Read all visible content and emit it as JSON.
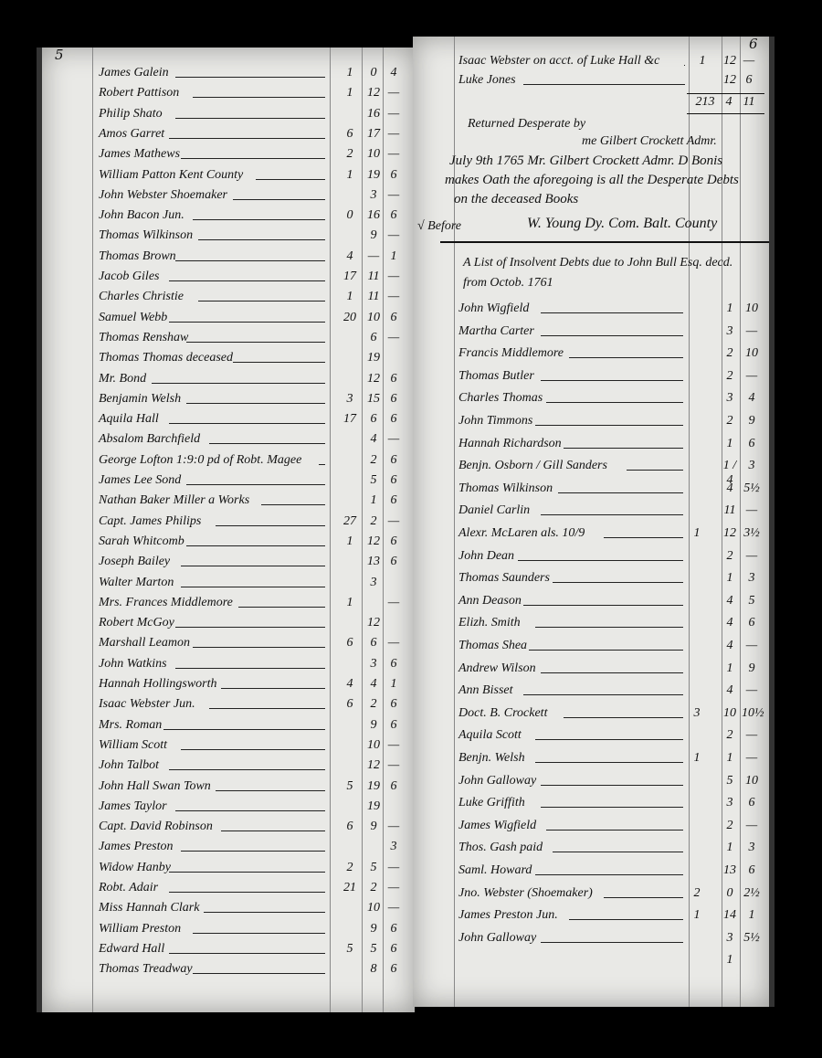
{
  "left_page": {
    "page_number": "5",
    "entries": [
      {
        "name": "James Galein",
        "l": "1",
        "s": "0",
        "d": "4"
      },
      {
        "name": "Robert Pattison",
        "l": "1",
        "s": "12",
        "d": "—"
      },
      {
        "name": "Philip Shato",
        "l": "",
        "s": "16",
        "d": "—"
      },
      {
        "name": "Amos Garret",
        "l": "6",
        "s": "17",
        "d": "—"
      },
      {
        "name": "James Mathews",
        "l": "2",
        "s": "10",
        "d": "—"
      },
      {
        "name": "William Patton Kent County",
        "l": "1",
        "s": "19",
        "d": "6"
      },
      {
        "name": "John Webster Shoemaker",
        "l": "",
        "s": "3",
        "d": "—"
      },
      {
        "name": "John Bacon Jun.",
        "l": "0",
        "s": "16",
        "d": "6"
      },
      {
        "name": "Thomas Wilkinson",
        "l": "",
        "s": "9",
        "d": "—"
      },
      {
        "name": "Thomas Brown",
        "l": "4",
        "s": "—",
        "d": "1"
      },
      {
        "name": "Jacob Giles",
        "l": "17",
        "s": "11",
        "d": "—"
      },
      {
        "name": "Charles Christie",
        "l": "1",
        "s": "11",
        "d": "—"
      },
      {
        "name": "Samuel Webb",
        "l": "20",
        "s": "10",
        "d": "6"
      },
      {
        "name": "Thomas Renshaw",
        "l": "",
        "s": "6",
        "d": "—"
      },
      {
        "name": "Thomas Thomas deceased",
        "l": "",
        "s": "19",
        "d": ""
      },
      {
        "name": "Mr. Bond",
        "l": "",
        "s": "12",
        "d": "6"
      },
      {
        "name": "Benjamin Welsh",
        "l": "3",
        "s": "15",
        "d": "6"
      },
      {
        "name": "Aquila Hall",
        "l": "17",
        "s": "6",
        "d": "6"
      },
      {
        "name": "Absalom Barchfield",
        "l": "",
        "s": "4",
        "d": "—"
      },
      {
        "name": "George Lofton 1:9:0 pd of Robt. Magee",
        "l": "",
        "s": "2",
        "d": "6"
      },
      {
        "name": "James Lee Sond",
        "l": "",
        "s": "5",
        "d": "6"
      },
      {
        "name": "Nathan Baker Miller a Works",
        "l": "",
        "s": "1",
        "d": "6"
      },
      {
        "name": "Capt. James Philips",
        "l": "27",
        "s": "2",
        "d": "—"
      },
      {
        "name": "Sarah Whitcomb",
        "l": "1",
        "s": "12",
        "d": "6"
      },
      {
        "name": "Joseph Bailey",
        "l": "",
        "s": "13",
        "d": "6"
      },
      {
        "name": "Walter Marton",
        "l": "",
        "s": "3",
        "d": ""
      },
      {
        "name": "Mrs. Frances Middlemore",
        "l": "1",
        "s": "",
        "d": "—"
      },
      {
        "name": "Robert McGoy",
        "l": "",
        "s": "12",
        "d": ""
      },
      {
        "name": "Marshall Leamon",
        "l": "6",
        "s": "6",
        "d": "—"
      },
      {
        "name": "John Watkins",
        "l": "",
        "s": "3",
        "d": "6"
      },
      {
        "name": "Hannah Hollingsworth",
        "l": "4",
        "s": "4",
        "d": "1"
      },
      {
        "name": "Isaac Webster Jun.",
        "l": "6",
        "s": "2",
        "d": "6"
      },
      {
        "name": "Mrs. Roman",
        "l": "",
        "s": "9",
        "d": "6"
      },
      {
        "name": "William Scott",
        "l": "",
        "s": "10",
        "d": "—"
      },
      {
        "name": "John Talbot",
        "l": "",
        "s": "12",
        "d": "—"
      },
      {
        "name": "John Hall Swan Town",
        "l": "5",
        "s": "19",
        "d": "6"
      },
      {
        "name": "James Taylor",
        "l": "",
        "s": "19",
        "d": ""
      },
      {
        "name": "Capt. David Robinson",
        "l": "6",
        "s": "9",
        "d": "—"
      },
      {
        "name": "James Preston",
        "l": "",
        "s": "",
        "d": "3"
      },
      {
        "name": "Widow Hanby",
        "l": "2",
        "s": "5",
        "d": "—"
      },
      {
        "name": "Robt. Adair",
        "l": "21",
        "s": "2",
        "d": "—"
      },
      {
        "name": "Miss Hannah Clark",
        "l": "",
        "s": "10",
        "d": "—"
      },
      {
        "name": "William Preston",
        "l": "",
        "s": "9",
        "d": "6"
      },
      {
        "name": "Edward Hall",
        "l": "5",
        "s": "5",
        "d": "6"
      },
      {
        "name": "Thomas Treadway",
        "l": "",
        "s": "8",
        "d": "6"
      }
    ]
  },
  "right_page": {
    "page_number": "6",
    "top_entries": [
      {
        "name": "Isaac Webster on acct. of Luke Hall &c",
        "l": "1",
        "s": "12",
        "d": "—"
      },
      {
        "name": "Luke Jones",
        "l": "",
        "s": "12",
        "d": "6"
      }
    ],
    "total": {
      "l": "213",
      "s": "4",
      "d": "11"
    },
    "note_1": "Returned Desperate by",
    "note_2": "me Gilbert Crockett Admr.",
    "oath_1": "July 9th 1765 Mr. Gilbert Crockett Admr. D Bonis",
    "oath_2": "makes Oath the aforegoing is all the Desperate Debts",
    "oath_3": "on the deceased Books",
    "signature_left": "√ Before",
    "signature": "W. Young Dy. Com. Balt. County",
    "list_title_1": "A List of Insolvent Debts due to John Bull Esq. decd.",
    "list_title_2": "from Octob. 1761",
    "entries": [
      {
        "name": "John Wigfield",
        "l": "",
        "s": "1",
        "d": "10"
      },
      {
        "name": "Martha Carter",
        "l": "",
        "s": "3",
        "d": "—"
      },
      {
        "name": "Francis Middlemore",
        "l": "",
        "s": "2",
        "d": "10"
      },
      {
        "name": "Thomas Butler",
        "l": "",
        "s": "2",
        "d": "—"
      },
      {
        "name": "Charles Thomas",
        "l": "",
        "s": "3",
        "d": "4"
      },
      {
        "name": "John Timmons",
        "l": "",
        "s": "2",
        "d": "9"
      },
      {
        "name": "Hannah Richardson",
        "l": "",
        "s": "1",
        "d": "6"
      },
      {
        "name": "Benjn. Osborn / Gill Sanders",
        "l": "",
        "s": "1 / 4",
        "d": "3"
      },
      {
        "name": "Thomas Wilkinson",
        "l": "",
        "s": "4",
        "d": "5½"
      },
      {
        "name": "Daniel Carlin",
        "l": "",
        "s": "11",
        "d": "—"
      },
      {
        "name": "Alexr. McLaren als. 10/9",
        "l": "1",
        "s": "12",
        "d": "3½"
      },
      {
        "name": "John Dean",
        "l": "",
        "s": "2",
        "d": "—"
      },
      {
        "name": "Thomas Saunders",
        "l": "",
        "s": "1",
        "d": "3"
      },
      {
        "name": "Ann Deason",
        "l": "",
        "s": "4",
        "d": "5"
      },
      {
        "name": "Elizh. Smith",
        "l": "",
        "s": "4",
        "d": "6"
      },
      {
        "name": "Thomas Shea",
        "l": "",
        "s": "4",
        "d": "—"
      },
      {
        "name": "Andrew Wilson",
        "l": "",
        "s": "1",
        "d": "9"
      },
      {
        "name": "Ann Bisset",
        "l": "",
        "s": "4",
        "d": "—"
      },
      {
        "name": "Doct. B. Crockett",
        "l": "3",
        "s": "10",
        "d": "10½"
      },
      {
        "name": "Aquila Scott",
        "l": "",
        "s": "2",
        "d": "—"
      },
      {
        "name": "Benjn. Welsh",
        "l": "1",
        "s": "1",
        "d": "—"
      },
      {
        "name": "John Galloway",
        "l": "",
        "s": "5",
        "d": "10"
      },
      {
        "name": "Luke Griffith",
        "l": "",
        "s": "3",
        "d": "6"
      },
      {
        "name": "James Wigfield",
        "l": "",
        "s": "2",
        "d": "—"
      },
      {
        "name": "Thos. Gash paid",
        "l": "",
        "s": "1",
        "d": "3"
      },
      {
        "name": "Saml. Howard",
        "l": "",
        "s": "13",
        "d": "6"
      },
      {
        "name": "Jno. Webster (Shoemaker)",
        "l": "2",
        "s": "0",
        "d": "2½"
      },
      {
        "name": "James Preston Jun.",
        "l": "1",
        "s": "14",
        "d": "1"
      },
      {
        "name": "John Galloway",
        "l": "",
        "s": "3",
        "d": "5½"
      },
      {
        "name": "",
        "l": "",
        "s": "1",
        "d": ""
      }
    ]
  }
}
